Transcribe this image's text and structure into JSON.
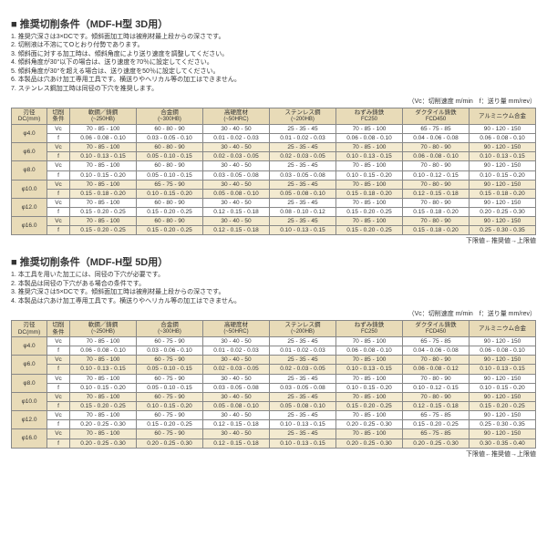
{
  "sections": [
    {
      "title": "■ 推奨切削条件（MDF-H型 3D用）",
      "notes": [
        "1. 推奨穴深さは3×DCです。傾斜面加工時は被削材最上段からの深さです。",
        "2. 切削液は不溶にてOとおり付勢であります。",
        "3. 傾斜面に対する加工時は、傾斜角度により送り速度を調整してください。",
        "4. 傾斜角度が30°以下の場合は、送り速度を70％に設定してください。",
        "5. 傾斜角度が30°を超える場合は、送り速度を50％に設定してください。",
        "6. 本製品は穴あけ加工専用工具です。横送りやヘリカル等の加工はできません。",
        "7. ステンレス鋼加工時は同径の下穴を推奨します。"
      ]
    },
    {
      "title": "■ 推奨切削条件（MDF-H型 5D用）",
      "notes": [
        "1. 本工具を用いた加工には、同径の下穴が必要です。",
        "2. 本製品は同径の下穴がある場合の条件です。",
        "3. 推奨穴深さは5×DCです。傾斜面加工時は被削材最上段からの深さです。",
        "4. 本製品は穴あけ加工専用工具です。横送りやヘリカル等の加工はできません。"
      ]
    }
  ],
  "unit_note": "（Vc：切削速度 m/min　f：送り量 mm/rev）",
  "foot_note": "下限値←推奨値→上限値",
  "headers": {
    "dc": "刃径\nDC(mm)",
    "cond": "切削\n条件",
    "materials": [
      {
        "name": "軟鋼／鋳鋼",
        "sub": "(~250HB)"
      },
      {
        "name": "合金鋼",
        "sub": "(~300HB)"
      },
      {
        "name": "高硬度材",
        "sub": "(~50HRC)"
      },
      {
        "name": "ステンレス鋼",
        "sub": "(~200HB)"
      },
      {
        "name": "ねずみ鋳鉄",
        "sub": "FC250"
      },
      {
        "name": "ダクタイル鋳鉄",
        "sub": "FCD450"
      },
      {
        "name": "アルミニウム合金",
        "sub": ""
      }
    ]
  },
  "tables": {
    "t3d": [
      {
        "dc": "φ4.0",
        "vc": [
          "70 - 85 - 100",
          "60 - 80 - 90",
          "30 - 40 - 50",
          "25 - 35 - 45",
          "70 - 85 - 100",
          "65 - 75 - 85",
          "90 - 120 - 150"
        ],
        "f": [
          "0.06 - 0.08 - 0.10",
          "0.03 - 0.05 - 0.10",
          "0.01 - 0.02 - 0.03",
          "0.01 - 0.02 - 0.03",
          "0.06 - 0.08 - 0.10",
          "0.04 - 0.06 - 0.08",
          "0.06 - 0.08 - 0.10"
        ]
      },
      {
        "dc": "φ6.0",
        "vc": [
          "70 - 85 - 100",
          "60 - 80 - 90",
          "30 - 40 - 50",
          "25 - 35 - 45",
          "70 - 85 - 100",
          "70 - 80 - 90",
          "90 - 120 - 150"
        ],
        "f": [
          "0.10 - 0.13 - 0.15",
          "0.05 - 0.10 - 0.15",
          "0.02 - 0.03 - 0.05",
          "0.02 - 0.03 - 0.05",
          "0.10 - 0.13 - 0.15",
          "0.06 - 0.08 - 0.10",
          "0.10 - 0.13 - 0.15"
        ]
      },
      {
        "dc": "φ8.0",
        "vc": [
          "70 - 85 - 100",
          "60 - 80 - 90",
          "30 - 40 - 50",
          "25 - 35 - 45",
          "70 - 85 - 100",
          "70 - 80 - 90",
          "90 - 120 - 150"
        ],
        "f": [
          "0.10 - 0.15 - 0.20",
          "0.05 - 0.10 - 0.15",
          "0.03 - 0.05 - 0.08",
          "0.03 - 0.05 - 0.08",
          "0.10 - 0.15 - 0.20",
          "0.10 - 0.12 - 0.15",
          "0.10 - 0.15 - 0.20"
        ]
      },
      {
        "dc": "φ10.0",
        "vc": [
          "70 - 85 - 100",
          "65 - 75 - 90",
          "30 - 40 - 50",
          "25 - 35 - 45",
          "70 - 85 - 100",
          "70 - 80 - 90",
          "90 - 120 - 150"
        ],
        "f": [
          "0.15 - 0.18 - 0.20",
          "0.10 - 0.15 - 0.20",
          "0.05 - 0.08 - 0.10",
          "0.05 - 0.08 - 0.10",
          "0.15 - 0.18 - 0.20",
          "0.12 - 0.15 - 0.18",
          "0.15 - 0.18 - 0.20"
        ]
      },
      {
        "dc": "φ12.0",
        "vc": [
          "70 - 85 - 100",
          "60 - 80 - 90",
          "30 - 40 - 50",
          "25 - 35 - 45",
          "70 - 85 - 100",
          "70 - 80 - 90",
          "90 - 120 - 150"
        ],
        "f": [
          "0.15 - 0.20 - 0.25",
          "0.15 - 0.20 - 0.25",
          "0.12 - 0.15 - 0.18",
          "0.08 - 0.10 - 0.12",
          "0.15 - 0.20 - 0.25",
          "0.15 - 0.18 - 0.20",
          "0.20 - 0.25 - 0.30"
        ]
      },
      {
        "dc": "φ16.0",
        "vc": [
          "70 - 85 - 100",
          "60 - 80 - 90",
          "30 - 40 - 50",
          "25 - 35 - 45",
          "70 - 85 - 100",
          "70 - 80 - 90",
          "90 - 120 - 150"
        ],
        "f": [
          "0.15 - 0.20 - 0.25",
          "0.15 - 0.20 - 0.25",
          "0.12 - 0.15 - 0.18",
          "0.10 - 0.13 - 0.15",
          "0.15 - 0.20 - 0.25",
          "0.15 - 0.18 - 0.20",
          "0.25 - 0.30 - 0.35"
        ]
      }
    ],
    "t5d": [
      {
        "dc": "φ4.0",
        "vc": [
          "70 - 85 - 100",
          "60 - 75 - 90",
          "30 - 40 - 50",
          "25 - 35 - 45",
          "70 - 85 - 100",
          "65 - 75 - 85",
          "90 - 120 - 150"
        ],
        "f": [
          "0.06 - 0.08 - 0.10",
          "0.03 - 0.06 - 0.10",
          "0.01 - 0.02 - 0.03",
          "0.01 - 0.02 - 0.03",
          "0.06 - 0.08 - 0.10",
          "0.04 - 0.06 - 0.08",
          "0.06 - 0.08 - 0.10"
        ]
      },
      {
        "dc": "φ6.0",
        "vc": [
          "70 - 85 - 100",
          "60 - 75 - 90",
          "30 - 40 - 50",
          "25 - 35 - 45",
          "70 - 85 - 100",
          "70 - 80 - 90",
          "90 - 120 - 150"
        ],
        "f": [
          "0.10 - 0.13 - 0.15",
          "0.05 - 0.10 - 0.15",
          "0.02 - 0.03 - 0.05",
          "0.02 - 0.03 - 0.05",
          "0.10 - 0.13 - 0.15",
          "0.06 - 0.08 - 0.12",
          "0.10 - 0.13 - 0.15"
        ]
      },
      {
        "dc": "φ8.0",
        "vc": [
          "70 - 85 - 100",
          "60 - 75 - 90",
          "30 - 40 - 50",
          "25 - 35 - 45",
          "70 - 85 - 100",
          "70 - 80 - 90",
          "90 - 120 - 150"
        ],
        "f": [
          "0.10 - 0.15 - 0.20",
          "0.05 - 0.10 - 0.15",
          "0.03 - 0.05 - 0.08",
          "0.03 - 0.05 - 0.08",
          "0.10 - 0.15 - 0.20",
          "0.10 - 0.12 - 0.15",
          "0.10 - 0.15 - 0.20"
        ]
      },
      {
        "dc": "φ10.0",
        "vc": [
          "70 - 85 - 100",
          "60 - 75 - 90",
          "30 - 40 - 50",
          "25 - 35 - 45",
          "70 - 85 - 100",
          "70 - 80 - 90",
          "90 - 120 - 150"
        ],
        "f": [
          "0.15 - 0.20 - 0.25",
          "0.10 - 0.15 - 0.20",
          "0.05 - 0.08 - 0.10",
          "0.05 - 0.08 - 0.10",
          "0.15 - 0.20 - 0.25",
          "0.12 - 0.15 - 0.18",
          "0.15 - 0.20 - 0.25"
        ]
      },
      {
        "dc": "φ12.0",
        "vc": [
          "70 - 85 - 100",
          "60 - 75 - 90",
          "30 - 40 - 50",
          "25 - 35 - 45",
          "70 - 85 - 100",
          "65 - 75 - 85",
          "90 - 120 - 150"
        ],
        "f": [
          "0.20 - 0.25 - 0.30",
          "0.15 - 0.20 - 0.25",
          "0.12 - 0.15 - 0.18",
          "0.10 - 0.13 - 0.15",
          "0.20 - 0.25 - 0.30",
          "0.15 - 0.20 - 0.25",
          "0.25 - 0.30 - 0.35"
        ]
      },
      {
        "dc": "φ16.0",
        "vc": [
          "70 - 85 - 100",
          "60 - 75 - 90",
          "30 - 40 - 50",
          "25 - 35 - 45",
          "70 - 85 - 100",
          "65 - 75 - 85",
          "90 - 120 - 150"
        ],
        "f": [
          "0.20 - 0.25 - 0.30",
          "0.20 - 0.25 - 0.30",
          "0.12 - 0.15 - 0.18",
          "0.10 - 0.13 - 0.15",
          "0.20 - 0.25 - 0.30",
          "0.20 - 0.25 - 0.30",
          "0.30 - 0.35 - 0.40"
        ]
      }
    ]
  }
}
